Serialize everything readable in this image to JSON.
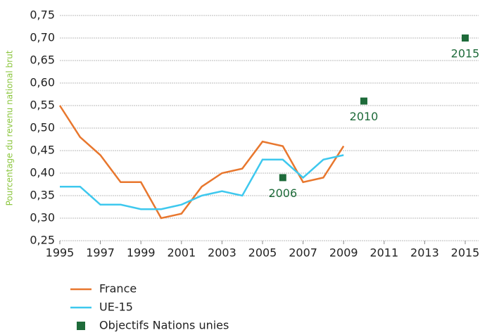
{
  "chart_data": {
    "type": "line",
    "ylabel": "Pourcentage du revenu national brut",
    "ylim": [
      0.25,
      0.75
    ],
    "yticks": [
      {
        "value": 0.25,
        "label": "0,25"
      },
      {
        "value": 0.3,
        "label": "0,30"
      },
      {
        "value": 0.35,
        "label": "0,35"
      },
      {
        "value": 0.4,
        "label": "0,40"
      },
      {
        "value": 0.45,
        "label": "0,45"
      },
      {
        "value": 0.5,
        "label": "0,50"
      },
      {
        "value": 0.55,
        "label": "0,55"
      },
      {
        "value": 0.6,
        "label": "0,60"
      },
      {
        "value": 0.65,
        "label": "0,65"
      },
      {
        "value": 0.7,
        "label": "0,70"
      },
      {
        "value": 0.75,
        "label": "0,75"
      }
    ],
    "xlim": [
      1995,
      2015
    ],
    "xticks": [
      1995,
      1997,
      1999,
      2001,
      2003,
      2005,
      2007,
      2009,
      2011,
      2013,
      2015
    ],
    "grid": true,
    "series": [
      {
        "name": "France",
        "color": "#e8772e",
        "type": "line",
        "x": [
          1995,
          1996,
          1997,
          1998,
          1999,
          2000,
          2001,
          2002,
          2003,
          2004,
          2005,
          2006,
          2007,
          2008,
          2009
        ],
        "values": [
          0.55,
          0.48,
          0.44,
          0.38,
          0.38,
          0.3,
          0.31,
          0.37,
          0.4,
          0.41,
          0.47,
          0.46,
          0.38,
          0.39,
          0.46
        ]
      },
      {
        "name": "UE-15",
        "color": "#3ec8ee",
        "type": "line",
        "x": [
          1995,
          1996,
          1997,
          1998,
          1999,
          2000,
          2001,
          2002,
          2003,
          2004,
          2005,
          2006,
          2007,
          2008,
          2009
        ],
        "values": [
          0.37,
          0.37,
          0.33,
          0.33,
          0.32,
          0.32,
          0.33,
          0.35,
          0.36,
          0.35,
          0.43,
          0.43,
          0.39,
          0.43,
          0.44
        ]
      },
      {
        "name": "Objectifs Nations unies",
        "color": "#1e6b3a",
        "type": "scatter",
        "x": [
          2006,
          2010,
          2015
        ],
        "values": [
          0.39,
          0.56,
          0.7
        ]
      }
    ]
  }
}
